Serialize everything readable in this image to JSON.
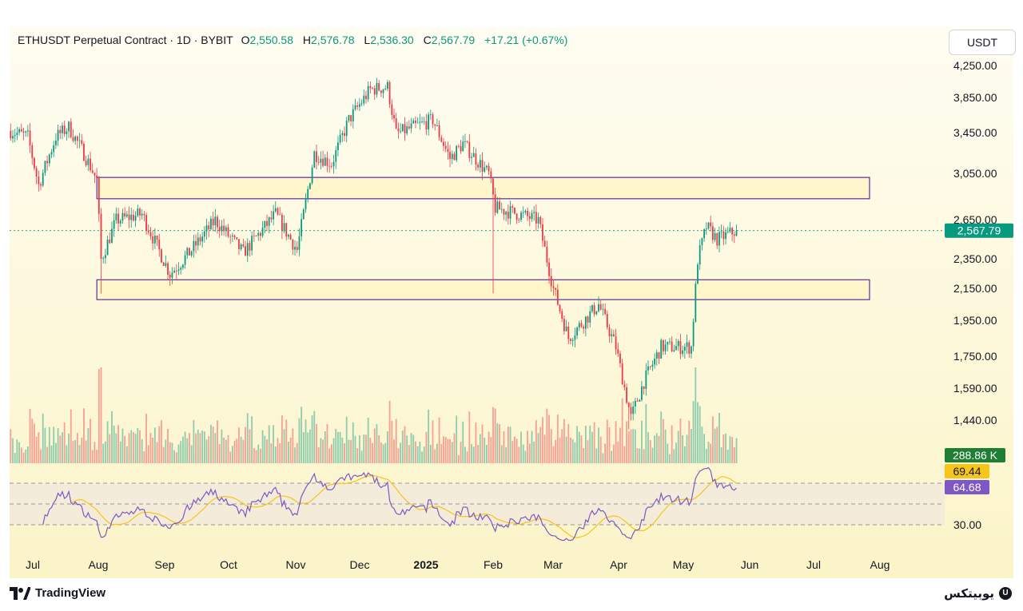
{
  "header": {
    "symbol": "ETHUSDT Perpetual Contract · 1D · BYBIT",
    "open_label": "O",
    "open": "2,550.58",
    "high_label": "H",
    "high": "2,576.78",
    "low_label": "L",
    "low": "2,536.30",
    "close_label": "C",
    "close": "2,567.79",
    "change": "+17.21 (+0.67%)"
  },
  "currency_button": "USDT",
  "footer": {
    "tradingview": "TradingView",
    "brand": "یوبیتکس",
    "brand_mark": "U"
  },
  "colors": {
    "up": "#089981",
    "down": "#f23645",
    "rsi": "#7e57c2",
    "rsi_ma": "#f5c518",
    "zone_border": "#5b2c9e",
    "zone_fill": "#fff4c2",
    "volume_label": "#1e7e34"
  },
  "chart_data": {
    "type": "candlestick",
    "x_ticks": [
      "Jul",
      "Aug",
      "Sep",
      "Oct",
      "Nov",
      "Dec",
      "2025",
      "Feb",
      "Mar",
      "Apr",
      "May",
      "Jun",
      "Jul",
      "Aug"
    ],
    "y_ticks": [
      "4,250.00",
      "3,850.00",
      "3,450.00",
      "3,050.00",
      "2,650.00",
      "2,350.00",
      "2,150.00",
      "1,950.00",
      "1,750.00",
      "1,590.00",
      "1,440.00"
    ],
    "last_price_label": "2,567.79",
    "last_price": 2567.79,
    "ohlc_waypoints": [
      {
        "date": "2024-06-24",
        "close": 3480
      },
      {
        "date": "2024-07-02",
        "close": 3420
      },
      {
        "date": "2024-07-07",
        "close": 2950
      },
      {
        "date": "2024-07-15",
        "close": 3420
      },
      {
        "date": "2024-07-21",
        "close": 3520
      },
      {
        "date": "2024-07-28",
        "close": 3250
      },
      {
        "date": "2024-08-03",
        "close": 3000
      },
      {
        "date": "2024-08-05",
        "close": 2350
      },
      {
        "date": "2024-08-12",
        "close": 2650
      },
      {
        "date": "2024-08-24",
        "close": 2700
      },
      {
        "date": "2024-09-06",
        "close": 2250
      },
      {
        "date": "2024-09-15",
        "close": 2400
      },
      {
        "date": "2024-09-27",
        "close": 2650
      },
      {
        "date": "2024-10-10",
        "close": 2400
      },
      {
        "date": "2024-10-25",
        "close": 2700
      },
      {
        "date": "2024-11-04",
        "close": 2420
      },
      {
        "date": "2024-11-12",
        "close": 3250
      },
      {
        "date": "2024-11-20",
        "close": 3150
      },
      {
        "date": "2024-11-28",
        "close": 3600
      },
      {
        "date": "2024-12-08",
        "close": 3950
      },
      {
        "date": "2024-12-16",
        "close": 3980
      },
      {
        "date": "2024-12-20",
        "close": 3450
      },
      {
        "date": "2025-01-06",
        "close": 3600
      },
      {
        "date": "2025-01-14",
        "close": 3200
      },
      {
        "date": "2025-01-20",
        "close": 3350
      },
      {
        "date": "2025-02-01",
        "close": 3050
      },
      {
        "date": "2025-02-04",
        "close": 2750
      },
      {
        "date": "2025-02-15",
        "close": 2700
      },
      {
        "date": "2025-02-24",
        "close": 2650
      },
      {
        "date": "2025-03-03",
        "close": 2150
      },
      {
        "date": "2025-03-10",
        "close": 1850
      },
      {
        "date": "2025-03-24",
        "close": 2050
      },
      {
        "date": "2025-04-01",
        "close": 1800
      },
      {
        "date": "2025-04-08",
        "close": 1450
      },
      {
        "date": "2025-04-14",
        "close": 1620
      },
      {
        "date": "2025-04-22",
        "close": 1800
      },
      {
        "date": "2025-05-06",
        "close": 1800
      },
      {
        "date": "2025-05-09",
        "close": 2350
      },
      {
        "date": "2025-05-13",
        "close": 2600
      },
      {
        "date": "2025-05-18",
        "close": 2500
      },
      {
        "date": "2025-05-27",
        "close": 2567.79
      }
    ],
    "resistance_zone": {
      "from": "2024-08-05",
      "to": "2025-07-31",
      "price_low": 2830,
      "price_high": 3020
    },
    "support_zone": {
      "from": "2024-08-05",
      "to": "2025-07-31",
      "price_low": 2080,
      "price_high": 2210
    },
    "volume": {
      "last_label": "288.86 K"
    },
    "rsi": {
      "value_label": "64.68",
      "ma_label": "69.44",
      "level_label": "30.00",
      "upper": 70,
      "mid": 50,
      "lower": 30
    }
  }
}
